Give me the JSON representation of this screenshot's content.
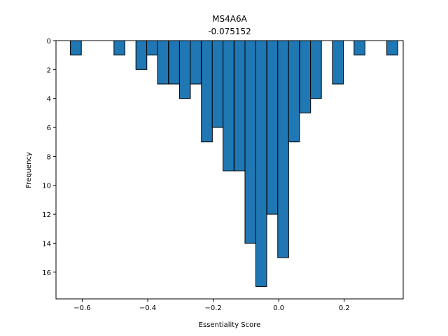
{
  "chart_data": {
    "type": "bar",
    "title": "MS4A6A",
    "subtitle": "-0.075152",
    "xlabel": "Essentiality Score",
    "ylabel": "Frequency",
    "xlim": [
      -0.68,
      0.38
    ],
    "ylim": [
      17.85,
      0
    ],
    "y_axis_inverted": true,
    "grid": false,
    "legend": "none",
    "bar_color": "#1f77b4",
    "edge_color": "#000000",
    "bin_width": 0.0333,
    "bins": [
      {
        "x0": -0.636,
        "value": 1
      },
      {
        "x0": -0.503,
        "value": 1
      },
      {
        "x0": -0.436,
        "value": 2
      },
      {
        "x0": -0.403,
        "value": 1
      },
      {
        "x0": -0.37,
        "value": 3
      },
      {
        "x0": -0.336,
        "value": 3
      },
      {
        "x0": -0.303,
        "value": 4
      },
      {
        "x0": -0.27,
        "value": 3
      },
      {
        "x0": -0.236,
        "value": 7
      },
      {
        "x0": -0.203,
        "value": 6
      },
      {
        "x0": -0.17,
        "value": 9
      },
      {
        "x0": -0.136,
        "value": 9
      },
      {
        "x0": -0.103,
        "value": 14
      },
      {
        "x0": -0.07,
        "value": 17
      },
      {
        "x0": -0.036,
        "value": 12
      },
      {
        "x0": -0.003,
        "value": 15
      },
      {
        "x0": 0.03,
        "value": 7
      },
      {
        "x0": 0.064,
        "value": 5
      },
      {
        "x0": 0.097,
        "value": 4
      },
      {
        "x0": 0.164,
        "value": 3
      },
      {
        "x0": 0.23,
        "value": 1
      },
      {
        "x0": 0.33,
        "value": 1
      }
    ],
    "x_ticks": [
      -0.6,
      -0.4,
      -0.2,
      0.0,
      0.2
    ],
    "x_tick_labels": [
      "−0.6",
      "−0.4",
      "−0.2",
      "0.0",
      "0.2"
    ],
    "y_ticks": [
      0,
      2,
      4,
      6,
      8,
      10,
      12,
      14,
      16
    ],
    "y_tick_labels": [
      "0",
      "2",
      "4",
      "6",
      "8",
      "10",
      "12",
      "14",
      "16"
    ]
  }
}
